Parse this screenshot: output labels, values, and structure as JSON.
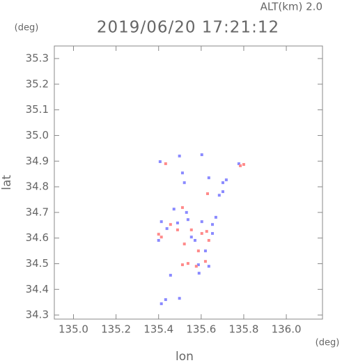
{
  "chart_data": {
    "type": "scatter",
    "title": "2019/06/20 17:21:12",
    "subtitle": "ALT(km) 2.0",
    "xlabel": "lon",
    "ylabel": "lat",
    "x_unit": "(deg)",
    "y_unit": "(deg)",
    "xlim": [
      134.91,
      136.17
    ],
    "ylim": [
      34.284,
      35.349
    ],
    "xticks": [
      {
        "value": 135,
        "label": "135.0"
      },
      135.2,
      135.4,
      135.6,
      135.8,
      {
        "value": 136,
        "label": "136.0"
      }
    ],
    "yticks": [
      34.3,
      34.4,
      34.5,
      34.6,
      34.7,
      34.8,
      34.9,
      {
        "value": 35,
        "label": "35.0"
      },
      35.1,
      35.2,
      35.3
    ],
    "series": [
      {
        "color": "#8a8aff",
        "x": [
          135.407,
          135.498,
          135.603,
          135.521,
          135.512,
          135.636,
          135.718,
          135.702,
          135.777,
          135.413,
          135.439,
          135.489,
          135.538,
          135.603,
          135.653,
          135.4,
          135.571,
          135.62,
          135.653,
          135.587,
          135.636,
          135.456,
          135.433,
          135.498,
          135.413,
          135.59,
          135.531,
          135.554,
          135.669,
          135.702,
          135.685,
          135.472
        ],
        "values": [
          34.898,
          34.92,
          34.925,
          34.816,
          34.854,
          34.835,
          34.827,
          34.781,
          34.89,
          34.664,
          34.637,
          34.659,
          34.672,
          34.664,
          34.653,
          34.591,
          34.591,
          34.55,
          34.618,
          34.496,
          34.49,
          34.455,
          34.36,
          34.365,
          34.344,
          34.463,
          34.7,
          34.604,
          34.681,
          34.816,
          34.767,
          34.713
        ]
      },
      {
        "color": "#ff8a8a",
        "x": [
          135.433,
          135.63,
          135.784,
          135.8,
          135.413,
          135.512,
          135.456,
          135.554,
          135.521,
          135.587,
          135.538,
          135.512,
          135.62,
          135.577,
          135.626,
          135.636,
          135.489,
          135.603,
          135.4
        ],
        "values": [
          34.89,
          34.773,
          34.882,
          34.887,
          34.604,
          34.719,
          34.653,
          34.632,
          34.577,
          34.55,
          34.501,
          34.496,
          34.509,
          34.49,
          34.626,
          34.591,
          34.632,
          34.618,
          34.615
        ]
      }
    ]
  }
}
